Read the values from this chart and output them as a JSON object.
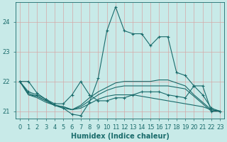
{
  "title": "",
  "xlabel": "Humidex (Indice chaleur)",
  "ylabel": "",
  "bg_color": "#c8eae8",
  "grid_color": "#d4a8a8",
  "line_color": "#1a6b6b",
  "xlim": [
    -0.5,
    23.5
  ],
  "ylim": [
    20.75,
    24.65
  ],
  "yticks": [
    21,
    22,
    23,
    24
  ],
  "xticks": [
    0,
    1,
    2,
    3,
    4,
    5,
    6,
    7,
    8,
    9,
    10,
    11,
    12,
    13,
    14,
    15,
    16,
    17,
    18,
    19,
    20,
    21,
    22,
    23
  ],
  "lines": [
    {
      "x": [
        0,
        1,
        2,
        3,
        4,
        5,
        6,
        7,
        8,
        9,
        10,
        11,
        12,
        13,
        14,
        15,
        16,
        17,
        18,
        19,
        20,
        21,
        22,
        23
      ],
      "y": [
        22.0,
        22.0,
        21.6,
        21.4,
        21.2,
        21.1,
        20.9,
        20.85,
        21.3,
        22.1,
        23.7,
        24.5,
        23.7,
        23.6,
        23.6,
        23.2,
        23.5,
        23.5,
        22.3,
        22.2,
        21.85,
        21.85,
        21.0,
        21.0
      ],
      "marker": "+"
    },
    {
      "x": [
        0,
        1,
        2,
        3,
        4,
        5,
        6,
        7,
        8,
        9,
        10,
        11,
        12,
        13,
        14,
        15,
        16,
        17,
        18,
        19,
        20,
        21,
        22,
        23
      ],
      "y": [
        22.0,
        21.65,
        21.55,
        21.4,
        21.25,
        21.25,
        21.55,
        22.0,
        21.55,
        21.35,
        21.35,
        21.45,
        21.45,
        21.55,
        21.65,
        21.65,
        21.65,
        21.55,
        21.5,
        21.45,
        21.85,
        21.55,
        21.1,
        21.0
      ],
      "marker": "+"
    },
    {
      "x": [
        0,
        1,
        2,
        3,
        4,
        5,
        6,
        7,
        8,
        9,
        10,
        11,
        12,
        13,
        14,
        15,
        16,
        17,
        18,
        19,
        20,
        21,
        22,
        23
      ],
      "y": [
        22.0,
        21.6,
        21.5,
        21.35,
        21.2,
        21.15,
        21.05,
        21.2,
        21.45,
        21.65,
        21.8,
        21.95,
        22.0,
        22.0,
        22.0,
        22.0,
        22.05,
        22.05,
        21.95,
        21.85,
        21.55,
        21.3,
        21.05,
        21.0
      ],
      "marker": null
    },
    {
      "x": [
        0,
        1,
        2,
        3,
        4,
        5,
        6,
        7,
        8,
        9,
        10,
        11,
        12,
        13,
        14,
        15,
        16,
        17,
        18,
        19,
        20,
        21,
        22,
        23
      ],
      "y": [
        22.0,
        21.55,
        21.5,
        21.35,
        21.2,
        21.15,
        21.05,
        21.15,
        21.35,
        21.55,
        21.7,
        21.8,
        21.85,
        21.85,
        21.85,
        21.85,
        21.85,
        21.85,
        21.8,
        21.75,
        21.5,
        21.25,
        21.0,
        21.0
      ],
      "marker": null
    },
    {
      "x": [
        0,
        1,
        2,
        3,
        4,
        5,
        6,
        7,
        8,
        9,
        10,
        11,
        12,
        13,
        14,
        15,
        16,
        17,
        18,
        19,
        20,
        21,
        22,
        23
      ],
      "y": [
        22.0,
        21.55,
        21.45,
        21.3,
        21.2,
        21.1,
        21.05,
        21.1,
        21.25,
        21.4,
        21.5,
        21.55,
        21.55,
        21.55,
        21.5,
        21.45,
        21.4,
        21.35,
        21.3,
        21.25,
        21.2,
        21.15,
        21.05,
        21.0
      ],
      "marker": null
    }
  ]
}
